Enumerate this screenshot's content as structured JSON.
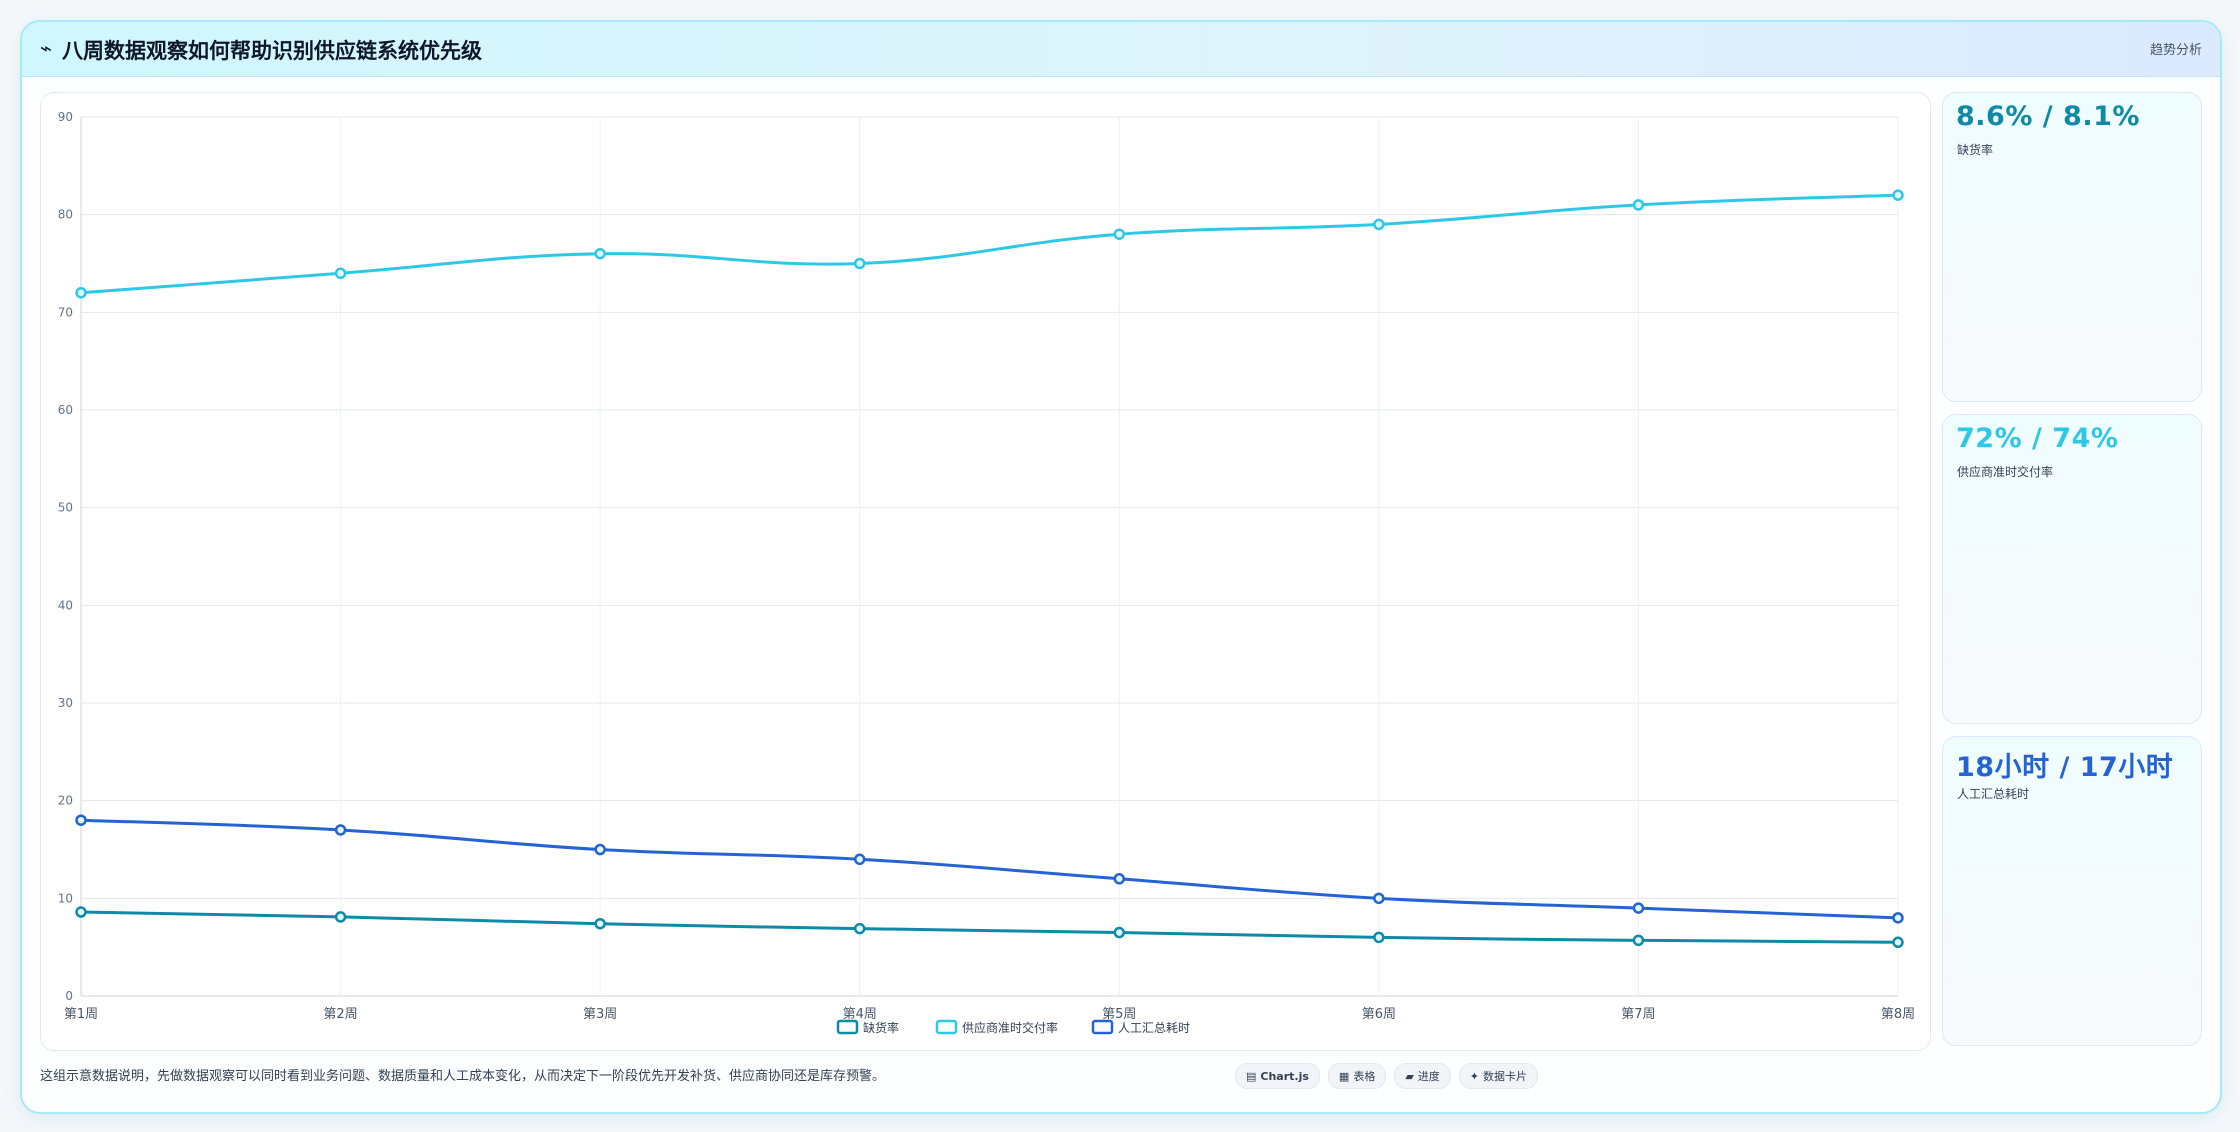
{
  "header": {
    "title": "八周数据观察如何帮助识别供应链系统优先级",
    "tag": "趋势分析",
    "icon": "trend-line-icon"
  },
  "chart_data": {
    "type": "line",
    "categories": [
      "第1周",
      "第2周",
      "第3周",
      "第4周",
      "第5周",
      "第6周",
      "第7周",
      "第8周"
    ],
    "ylim": [
      0,
      90
    ],
    "yticks": [
      0,
      10,
      20,
      30,
      40,
      50,
      60,
      70,
      80,
      90
    ],
    "grid": true,
    "legend_position": "bottom",
    "series": [
      {
        "name": "缺货率",
        "color": "#0e8aa6",
        "values": [
          8.6,
          8.1,
          7.4,
          6.9,
          6.5,
          6.0,
          5.7,
          5.5
        ]
      },
      {
        "name": "供应商准时交付率",
        "color": "#2ec8e6",
        "values": [
          72,
          74,
          76,
          75,
          78,
          79,
          81,
          82
        ]
      },
      {
        "name": "人工汇总耗时",
        "color": "#2563d3",
        "values": [
          18,
          17,
          15,
          14,
          12,
          10,
          9,
          8
        ]
      }
    ]
  },
  "cards": [
    {
      "value": "8.6% / 8.1%",
      "label": "缺货率",
      "color": "#0e8aa6"
    },
    {
      "value": "72% / 74%",
      "label": "供应商准时交付率",
      "color": "#2ec8e6"
    },
    {
      "value": "18小时 / 17小时",
      "label": "人工汇总耗时",
      "color": "#2563d3"
    }
  ],
  "footer": {
    "text": "这组示意数据说明，先做数据观察可以同时看到业务问题、数据质量和人工成本变化，从而决定下一阶段优先开发补货、供应商协同还是库存预警。",
    "chips": [
      {
        "icon": "chart-icon",
        "symbol": "▤",
        "label": "Chart.js"
      },
      {
        "icon": "table-icon",
        "symbol": "▦",
        "label": "表格"
      },
      {
        "icon": "folder-icon",
        "symbol": "▰",
        "label": "进度"
      },
      {
        "icon": "sparkle-icon",
        "symbol": "✦",
        "label": "数据卡片"
      }
    ]
  }
}
